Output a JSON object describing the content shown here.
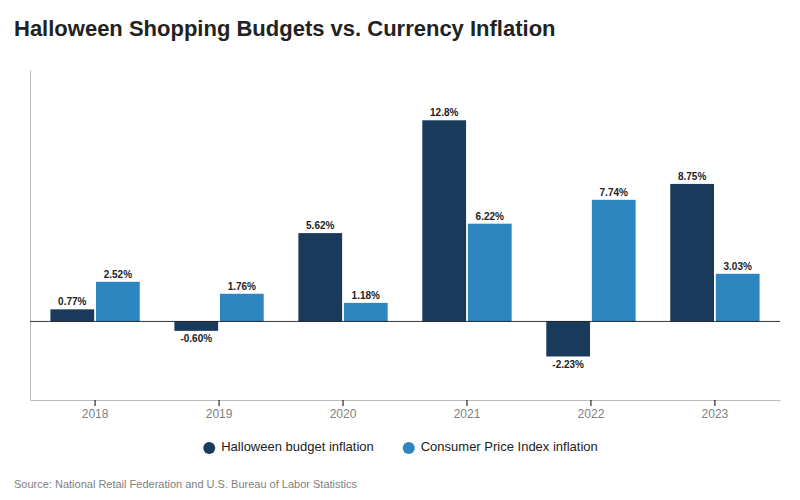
{
  "chart_data": {
    "type": "bar",
    "title": "Halloween Shopping Budgets vs. Currency Inflation",
    "categories": [
      "2018",
      "2019",
      "2020",
      "2021",
      "2022",
      "2023"
    ],
    "series": [
      {
        "name": "Halloween budget inflation",
        "color": "#1a3a5c",
        "values": [
          0.77,
          -0.6,
          5.62,
          12.8,
          -2.23,
          8.75
        ],
        "value_labels": [
          "0.77%",
          "-0.60%",
          "5.62%",
          "12.8%",
          "-2.23%",
          "8.75%"
        ]
      },
      {
        "name": "Consumer Price Index inflation",
        "color": "#2e86c1",
        "values": [
          2.52,
          1.76,
          1.18,
          6.22,
          7.74,
          3.03
        ],
        "value_labels": [
          "2.52%",
          "1.76%",
          "1.18%",
          "6.22%",
          "7.74%",
          "3.03%"
        ]
      }
    ],
    "ylim": [
      -5,
      16
    ],
    "tick_labels": "x",
    "data_labels": true,
    "legend": "bottom",
    "grid": false,
    "source": "Source: National Retail Federation and U.S. Bureau of Labor Statistics"
  }
}
